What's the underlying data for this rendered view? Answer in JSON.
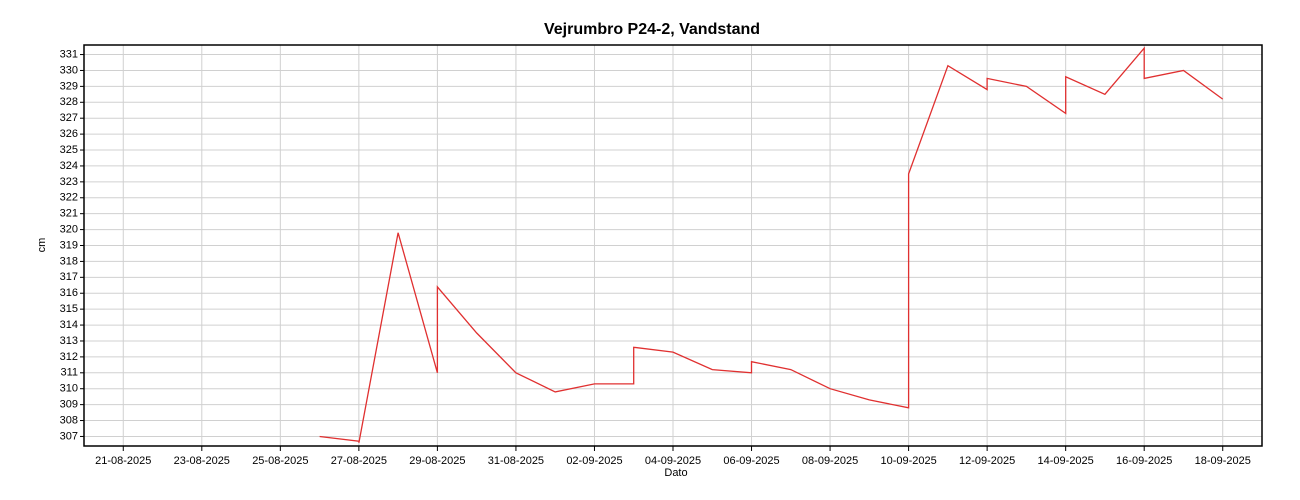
{
  "chart_data": {
    "type": "line",
    "title": "Vejrumbro P24-2, Vandstand",
    "x_label": "Dato",
    "y_label": "cm",
    "xlim": [
      "2025-08-20",
      "2025-09-19"
    ],
    "xticks": [
      {
        "value": "2025-08-21",
        "label": "21-08-2025"
      },
      {
        "value": "2025-08-23",
        "label": "23-08-2025"
      },
      {
        "value": "2025-08-25",
        "label": "25-08-2025"
      },
      {
        "value": "2025-08-27",
        "label": "27-08-2025"
      },
      {
        "value": "2025-08-29",
        "label": "29-08-2025"
      },
      {
        "value": "2025-08-31",
        "label": "31-08-2025"
      },
      {
        "value": "2025-09-02",
        "label": "02-09-2025"
      },
      {
        "value": "2025-09-04",
        "label": "04-09-2025"
      },
      {
        "value": "2025-09-06",
        "label": "06-09-2025"
      },
      {
        "value": "2025-09-08",
        "label": "08-09-2025"
      },
      {
        "value": "2025-09-10",
        "label": "10-09-2025"
      },
      {
        "value": "2025-09-12",
        "label": "12-09-2025"
      },
      {
        "value": "2025-09-14",
        "label": "14-09-2025"
      },
      {
        "value": "2025-09-16",
        "label": "16-09-2025"
      },
      {
        "value": "2025-09-18",
        "label": "18-09-2025"
      }
    ],
    "ylim": [
      306.4,
      331.6
    ],
    "yticks": [
      307,
      308,
      309,
      310,
      311,
      312,
      313,
      314,
      315,
      316,
      317,
      318,
      319,
      320,
      321,
      322,
      323,
      324,
      325,
      326,
      327,
      328,
      329,
      330,
      331
    ],
    "grid": true,
    "x": [
      "2025-08-26",
      "2025-08-27",
      "2025-08-27",
      "2025-08-28",
      "2025-08-29",
      "2025-08-29",
      "2025-08-30",
      "2025-08-31",
      "2025-09-01",
      "2025-09-02",
      "2025-09-03",
      "2025-09-03",
      "2025-09-04",
      "2025-09-05",
      "2025-09-06",
      "2025-09-06",
      "2025-09-07",
      "2025-09-08",
      "2025-09-09",
      "2025-09-10",
      "2025-09-10",
      "2025-09-11",
      "2025-09-12",
      "2025-09-12",
      "2025-09-13",
      "2025-09-14",
      "2025-09-14",
      "2025-09-15",
      "2025-09-16",
      "2025-09-16",
      "2025-09-17",
      "2025-09-18"
    ],
    "series": [
      {
        "name": "Vandstand",
        "color": "#e03030",
        "values": [
          307.0,
          306.7,
          306.6,
          319.8,
          311.0,
          316.4,
          313.5,
          311.0,
          309.8,
          310.3,
          310.3,
          312.6,
          312.3,
          311.2,
          311.0,
          311.7,
          311.2,
          310.0,
          309.3,
          308.8,
          323.5,
          330.3,
          328.8,
          329.5,
          329.0,
          327.3,
          329.6,
          328.5,
          331.4,
          329.5,
          330.0,
          328.2
        ]
      }
    ]
  }
}
